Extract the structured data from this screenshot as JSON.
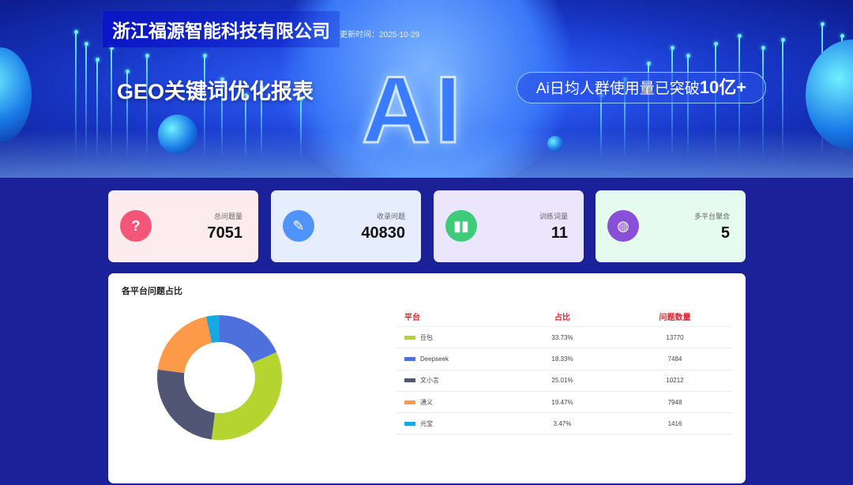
{
  "header": {
    "company": "浙江福源智能科技有限公司",
    "updated": "更新时间：2025-10-29",
    "title": "GEO关键词优化报表",
    "banner_text": "AI",
    "slogan_prefix": "Ai日均人群使用量已突破",
    "slogan_highlight": "10亿+"
  },
  "cards": [
    {
      "label": "总问题量",
      "value": "7051",
      "icon": "question-bubble-icon",
      "bg": "#fdecee",
      "icon_color": "#f4567a"
    },
    {
      "label": "收录问题",
      "value": "40830",
      "icon": "question-document-icon",
      "bg": "#e6edfd",
      "icon_color": "#4f93fb"
    },
    {
      "label": "训练词量",
      "value": "11",
      "icon": "bar-chart-icon",
      "bg": "#ece6fc",
      "icon_color": "#3ecb7a"
    },
    {
      "label": "多平台聚合",
      "value": "5",
      "icon": "globe-icon",
      "bg": "#e5fbef",
      "icon_color": "#8a4fd8"
    }
  ],
  "platform_panel": {
    "title": "各平台问题占比",
    "headers": [
      "平台",
      "占比",
      "问题数量"
    ],
    "rows": [
      {
        "name": "豆包",
        "share": "33.73%",
        "count": "13770",
        "color": "#b5d430"
      },
      {
        "name": "Deepseek",
        "share": "18.33%",
        "count": "7484",
        "color": "#4e70dc"
      },
      {
        "name": "文小言",
        "share": "25.01%",
        "count": "10212",
        "color": "#505673"
      },
      {
        "name": "通义",
        "share": "19.47%",
        "count": "7948",
        "color": "#fd9a4a"
      },
      {
        "name": "元宝",
        "share": "3.47%",
        "count": "1416",
        "color": "#16a8e0"
      }
    ]
  },
  "chart_data": {
    "type": "pie",
    "donut": true,
    "categories": [
      "豆包",
      "Deepseek",
      "文小言",
      "通义",
      "元宝"
    ],
    "values": [
      33.73,
      18.33,
      25.01,
      19.47,
      3.47
    ],
    "colors": [
      "#b5d430",
      "#4e70dc",
      "#505673",
      "#fd9a4a",
      "#16a8e0"
    ]
  }
}
